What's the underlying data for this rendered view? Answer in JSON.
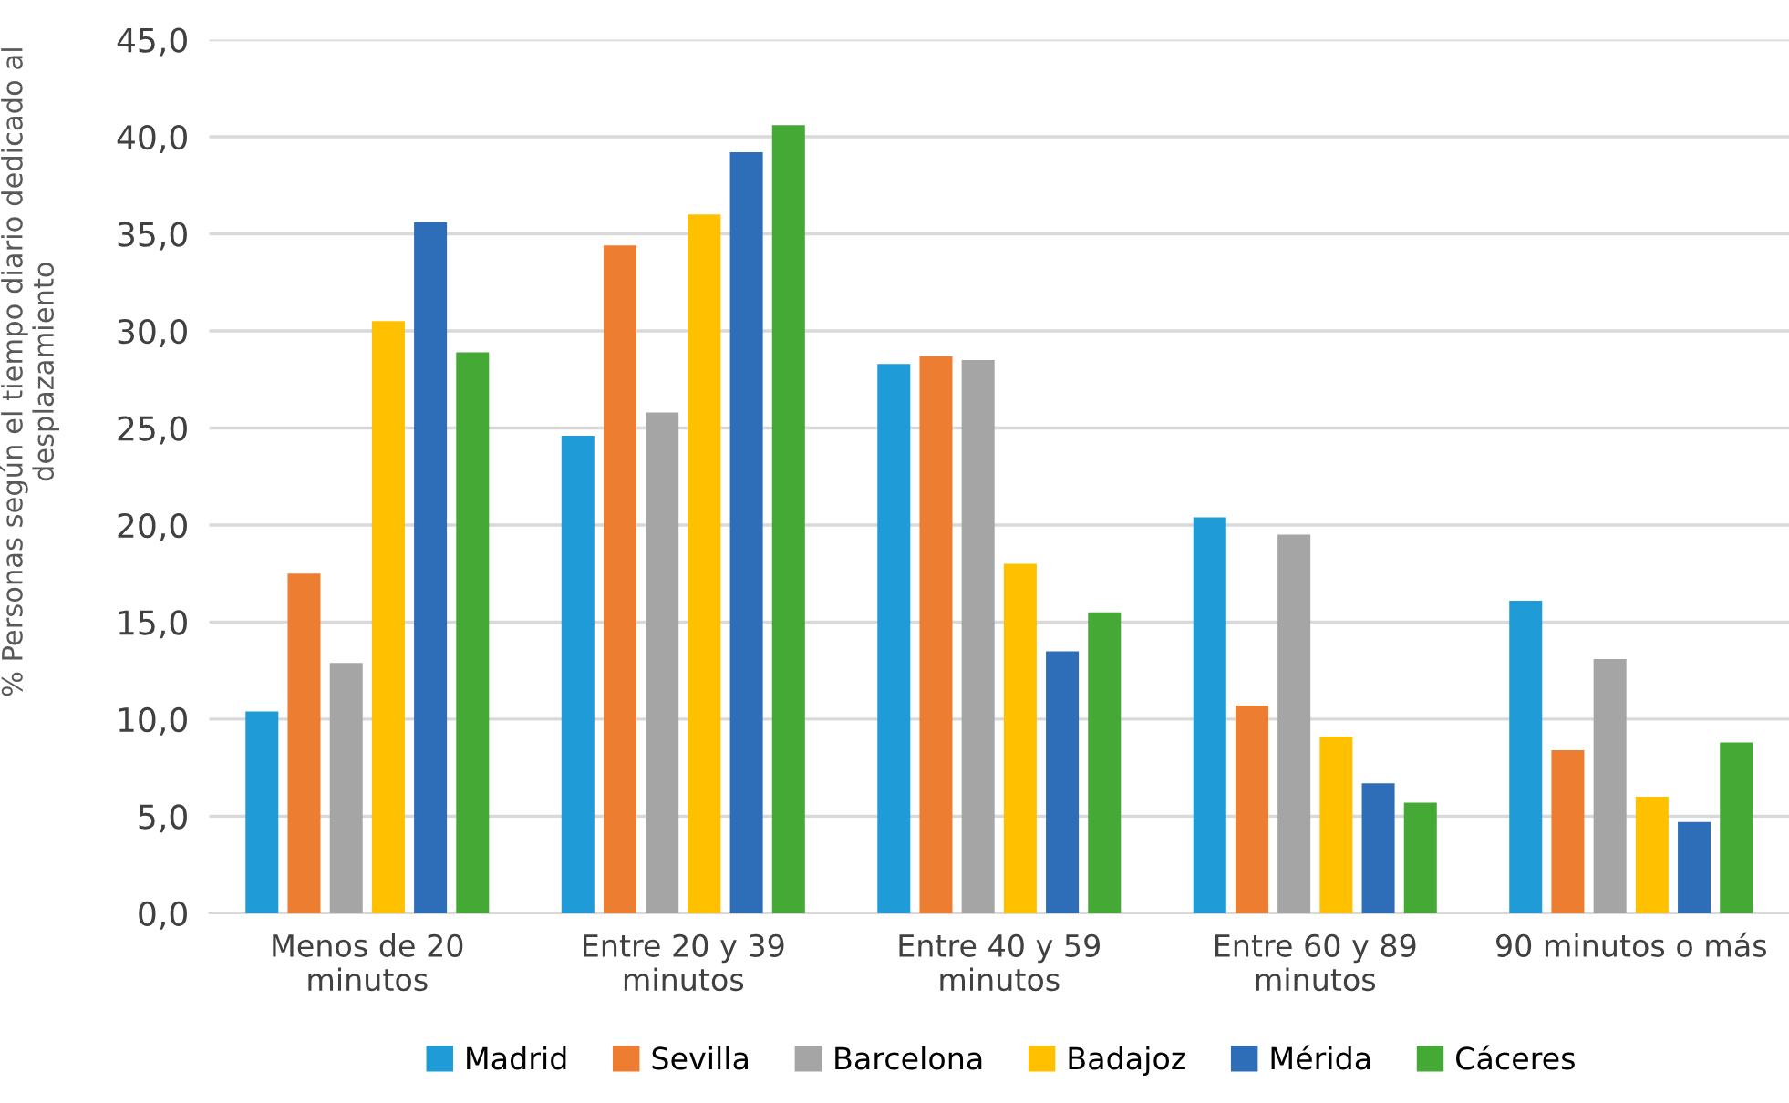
{
  "chart_data": {
    "type": "bar",
    "ylabel": "% Personas según el tiempo diario dedicado al desplazamiento",
    "categories": [
      "Menos de 20 minutos",
      "Entre 20 y 39 minutos",
      "Entre 40 y 59 minutos",
      "Entre 60 y 89 minutos",
      "90 minutos o más"
    ],
    "series": [
      {
        "name": "Madrid",
        "color": "#1f9bd7",
        "values": [
          10.4,
          24.6,
          28.3,
          20.4,
          16.1
        ]
      },
      {
        "name": "Sevilla",
        "color": "#ed7d31",
        "values": [
          17.5,
          34.4,
          28.7,
          10.7,
          8.4
        ]
      },
      {
        "name": "Barcelona",
        "color": "#a5a5a5",
        "values": [
          12.9,
          25.8,
          28.5,
          19.5,
          13.1
        ]
      },
      {
        "name": "Badajoz",
        "color": "#ffc000",
        "values": [
          30.5,
          36.0,
          18.0,
          9.1,
          6.0
        ]
      },
      {
        "name": "Mérida",
        "color": "#2e6eb8",
        "values": [
          35.6,
          39.2,
          13.5,
          6.7,
          4.7
        ]
      },
      {
        "name": "Cáceres",
        "color": "#44a935",
        "values": [
          28.9,
          40.6,
          15.5,
          5.7,
          8.8
        ]
      }
    ],
    "ylim": [
      0,
      45
    ],
    "yticks": [
      {
        "value": 0,
        "label": "0,0"
      },
      {
        "value": 5,
        "label": "5,0"
      },
      {
        "value": 10,
        "label": "10,0"
      },
      {
        "value": 15,
        "label": "15,0"
      },
      {
        "value": 20,
        "label": "20,0"
      },
      {
        "value": 25,
        "label": "25,0"
      },
      {
        "value": 30,
        "label": "30,0"
      },
      {
        "value": 35,
        "label": "35,0"
      },
      {
        "value": 40,
        "label": "40,0"
      },
      {
        "value": 45,
        "label": "45,0"
      }
    ],
    "grid": "y",
    "legend": "bottom"
  }
}
